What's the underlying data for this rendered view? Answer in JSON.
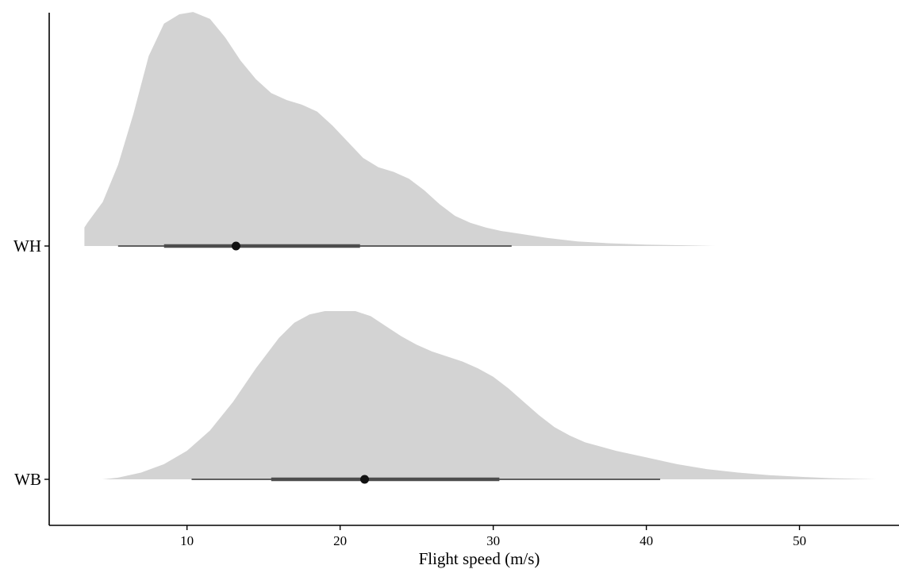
{
  "chart_data": {
    "type": "area",
    "subtype": "halfeye-density",
    "title": "",
    "xlabel": "Flight speed (m/s)",
    "ylabel": "",
    "xlim": [
      1,
      56.5
    ],
    "x_ticks": [
      10,
      20,
      30,
      40,
      50
    ],
    "categories": [
      "WB",
      "WH"
    ],
    "grid": false,
    "legend": "none",
    "colors": {
      "density_fill": "#d3d3d3",
      "interval_thin": "#5f5f5f",
      "interval_thick": "#4d4d4d",
      "point": "#111111"
    },
    "series": [
      {
        "name": "WH",
        "median": 13.2,
        "interval_66": [
          8.5,
          21.3
        ],
        "interval_95": [
          5.5,
          31.2
        ],
        "density": {
          "x": [
            3.3,
            3.5,
            4.5,
            5.5,
            6.5,
            7.5,
            8.5,
            9.5,
            10.4,
            11.5,
            12.5,
            13.5,
            14.5,
            15.5,
            16.5,
            17.5,
            18.5,
            19.5,
            20.5,
            21.5,
            22.5,
            23.5,
            24.5,
            25.5,
            26.5,
            27.5,
            28.5,
            29.5,
            30.5,
            31.5,
            33.5,
            35.5,
            37.5,
            40.0,
            42.5,
            44.5
          ],
          "y": [
            0.08,
            0.1,
            0.19,
            0.35,
            0.57,
            0.82,
            0.96,
            1.0,
            1.01,
            0.98,
            0.9,
            0.8,
            0.72,
            0.66,
            0.63,
            0.61,
            0.58,
            0.52,
            0.45,
            0.38,
            0.34,
            0.32,
            0.29,
            0.24,
            0.18,
            0.13,
            0.1,
            0.08,
            0.065,
            0.055,
            0.035,
            0.02,
            0.012,
            0.006,
            0.003,
            0.0
          ]
        }
      },
      {
        "name": "WB",
        "median": 21.6,
        "interval_66": [
          15.5,
          30.4
        ],
        "interval_95": [
          10.3,
          40.9
        ],
        "density": {
          "x": [
            4.5,
            5.5,
            7.0,
            8.5,
            10.0,
            11.5,
            13.0,
            14.5,
            16.0,
            17.0,
            18.0,
            19.0,
            20.0,
            21.0,
            22.0,
            23.0,
            24.0,
            25.0,
            26.0,
            27.0,
            28.0,
            29.0,
            30.0,
            31.0,
            32.0,
            33.0,
            34.0,
            35.0,
            36.0,
            38.0,
            40.0,
            42.0,
            44.0,
            46.0,
            48.0,
            50.0,
            52.0,
            55.0
          ],
          "y": [
            0.0,
            0.01,
            0.04,
            0.09,
            0.17,
            0.29,
            0.46,
            0.66,
            0.84,
            0.93,
            0.98,
            1.0,
            1.0,
            1.0,
            0.97,
            0.91,
            0.85,
            0.8,
            0.76,
            0.73,
            0.7,
            0.66,
            0.61,
            0.54,
            0.46,
            0.38,
            0.31,
            0.26,
            0.22,
            0.17,
            0.13,
            0.09,
            0.06,
            0.04,
            0.025,
            0.015,
            0.007,
            0.0
          ]
        }
      }
    ]
  }
}
